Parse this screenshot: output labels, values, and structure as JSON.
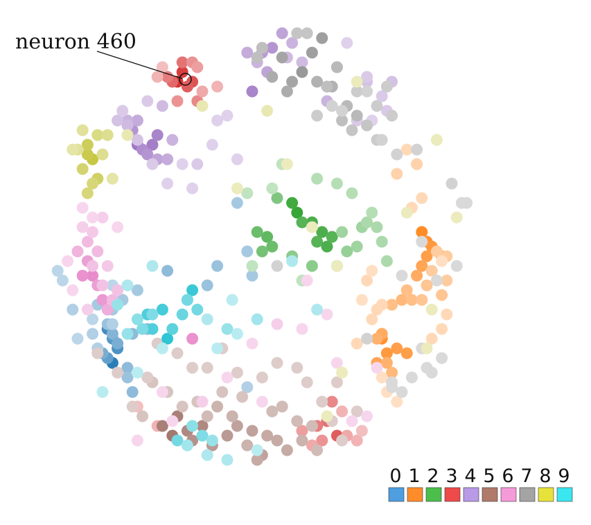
{
  "chart_data": {
    "type": "scatter",
    "title": "",
    "xlabel": "",
    "ylabel": "",
    "xlim": [
      0,
      100
    ],
    "ylim": [
      0,
      100
    ],
    "grid": false,
    "legend_position": "bottom-right",
    "annotation": {
      "label": "neuron 460",
      "point": [
        31.6,
        86.5
      ]
    },
    "legend": [
      {
        "label": "0",
        "color": "#4e9ee0"
      },
      {
        "label": "1",
        "color": "#ff8c2a"
      },
      {
        "label": "2",
        "color": "#4cbe4c"
      },
      {
        "label": "3",
        "color": "#ee4a4a"
      },
      {
        "label": "4",
        "color": "#b89ae6"
      },
      {
        "label": "5",
        "color": "#b07a6a"
      },
      {
        "label": "6",
        "color": "#f59ad8"
      },
      {
        "label": "7",
        "color": "#a4a4a4"
      },
      {
        "label": "8",
        "color": "#e6e23a"
      },
      {
        "label": "9",
        "color": "#3ae6f0"
      }
    ],
    "class_colors": [
      "#1f77b4",
      "#ff7f0e",
      "#2ca02c",
      "#d62728",
      "#9467bd",
      "#8c564b",
      "#e377c2",
      "#7f7f7f",
      "#bcbd22",
      "#17becf"
    ],
    "series": [
      {
        "name": "class 0",
        "x": [
          17,
          16,
          18,
          16,
          17,
          15,
          17,
          18,
          20,
          21,
          16,
          14,
          19,
          22,
          17,
          20,
          24,
          21,
          28,
          36,
          45,
          38,
          44,
          42,
          44,
          13,
          14,
          17,
          19,
          10,
          7,
          6,
          9,
          13,
          17
        ],
        "y": [
          28,
          35,
          31,
          29,
          33,
          30,
          34,
          32,
          27,
          22,
          36,
          40,
          41,
          43,
          39,
          25,
          35,
          34,
          47,
          44,
          46,
          48,
          51,
          61,
          23,
          34,
          31,
          36,
          41,
          33,
          45,
          47,
          39,
          37,
          44
        ],
        "strength": [
          0.95,
          0.85,
          0.8,
          0.7,
          0.75,
          0.6,
          0.55,
          0.6,
          0.5,
          0.5,
          0.45,
          0.4,
          0.5,
          0.4,
          0.4,
          0.45,
          0.5,
          0.5,
          0.5,
          0.45,
          0.4,
          0.45,
          0.4,
          0.4,
          0.35,
          0.35,
          0.35,
          0.35,
          0.4,
          0.3,
          0.3,
          0.3,
          0.35,
          0.3,
          0.3
        ]
      },
      {
        "name": "class 1",
        "x": [
          79,
          80,
          81,
          80,
          79,
          83,
          78,
          71,
          72,
          74,
          76,
          70,
          72,
          73,
          71,
          70,
          75,
          73,
          77,
          76,
          80,
          79,
          83,
          81,
          82,
          84,
          84,
          74,
          78,
          76,
          66,
          68,
          71,
          69,
          70,
          67,
          84,
          83,
          81,
          72,
          74,
          71,
          69,
          83,
          77,
          79
        ],
        "y": [
          55,
          53,
          52,
          50,
          48,
          50,
          46,
          33,
          30,
          31,
          30,
          28,
          28,
          26,
          34,
          33,
          41,
          40,
          41,
          43,
          44,
          41,
          42,
          47,
          51,
          50,
          45,
          67,
          69,
          72,
          32,
          45,
          40,
          37,
          39,
          41,
          38,
          35,
          33,
          22,
          20,
          25,
          47,
          49,
          60,
          62
        ],
        "strength": [
          0.9,
          0.85,
          0.8,
          0.75,
          0.7,
          0.7,
          0.65,
          0.85,
          0.8,
          0.75,
          0.75,
          0.7,
          0.6,
          0.55,
          0.65,
          0.6,
          0.55,
          0.5,
          0.5,
          0.5,
          0.45,
          0.45,
          0.45,
          0.4,
          0.4,
          0.4,
          0.4,
          0.35,
          0.35,
          0.3,
          0.3,
          0.3,
          0.3,
          0.3,
          0.3,
          0.25,
          0.3,
          0.3,
          0.3,
          0.25,
          0.25,
          0.25,
          0.25,
          0.25,
          0.3,
          0.3
        ]
      },
      {
        "name": "class 2",
        "x": [
          54,
          53,
          57,
          55,
          59,
          58,
          60,
          61,
          48,
          46,
          49,
          47,
          50,
          53,
          57,
          62,
          64,
          63,
          67,
          66,
          68,
          70,
          71,
          72,
          69,
          65,
          62,
          58,
          51,
          49,
          44,
          45,
          55
        ],
        "y": [
          59,
          61,
          57,
          57,
          55,
          53,
          52,
          54,
          54,
          55,
          52,
          51,
          62,
          50,
          48,
          48,
          51,
          55,
          56,
          52,
          57,
          56,
          53,
          49,
          59,
          63,
          65,
          66,
          69,
          64,
          63,
          48,
          45
        ],
        "strength": [
          0.95,
          0.9,
          0.85,
          0.8,
          0.85,
          0.8,
          0.85,
          0.8,
          0.75,
          0.7,
          0.7,
          0.65,
          0.6,
          0.55,
          0.55,
          0.5,
          0.5,
          0.45,
          0.45,
          0.45,
          0.4,
          0.4,
          0.4,
          0.4,
          0.35,
          0.35,
          0.35,
          0.35,
          0.3,
          0.3,
          0.3,
          0.3,
          0.3
        ]
      },
      {
        "name": "class 3",
        "x": [
          30,
          31,
          33,
          32,
          29,
          31,
          28,
          34,
          33,
          30,
          35,
          38,
          34,
          26,
          27,
          62,
          60,
          58,
          61,
          59,
          55,
          57,
          64,
          66,
          63,
          67,
          26,
          22
        ],
        "y": [
          86,
          88,
          86,
          85,
          86,
          90,
          87,
          82,
          90,
          82,
          84,
          85,
          89,
          87,
          89,
          13,
          16,
          15,
          20,
          12,
          14,
          11,
          13,
          12,
          18,
          14,
          15,
          19
        ],
        "strength": [
          0.95,
          0.9,
          0.8,
          0.75,
          0.7,
          0.65,
          0.6,
          0.55,
          0.5,
          0.5,
          0.4,
          0.35,
          0.45,
          0.35,
          0.3,
          0.75,
          0.65,
          0.6,
          0.55,
          0.5,
          0.45,
          0.4,
          0.4,
          0.35,
          0.35,
          0.3,
          0.35,
          0.3
        ]
      },
      {
        "name": "class 4",
        "x": [
          22,
          25,
          26,
          23,
          21,
          24,
          26,
          28,
          22,
          20,
          29,
          27,
          45,
          49,
          47,
          51,
          48,
          44,
          46,
          53,
          55,
          52,
          60,
          62,
          68,
          68,
          71,
          72,
          73,
          66,
          69,
          64,
          18,
          20,
          22,
          25,
          34,
          38,
          40,
          31,
          37,
          42,
          19,
          24,
          28,
          33
        ],
        "y": [
          73,
          73,
          75,
          72,
          76,
          71,
          70,
          70,
          78,
          78,
          74,
          81,
          84,
          93,
          92,
          96,
          88,
          92,
          90,
          94,
          90,
          91,
          82,
          89,
          86,
          87,
          83,
          80,
          86,
          78,
          78,
          94,
          78,
          77,
          74,
          69,
          69,
          78,
          79,
          69,
          73,
          70,
          80,
          82,
          65,
          64
        ],
        "strength": [
          0.9,
          0.85,
          0.8,
          0.75,
          0.7,
          0.7,
          0.6,
          0.55,
          0.55,
          0.5,
          0.5,
          0.45,
          0.8,
          0.7,
          0.65,
          0.6,
          0.6,
          0.55,
          0.5,
          0.5,
          0.45,
          0.45,
          0.5,
          0.45,
          0.4,
          0.35,
          0.35,
          0.35,
          0.4,
          0.35,
          0.3,
          0.3,
          0.4,
          0.45,
          0.4,
          0.35,
          0.35,
          0.3,
          0.3,
          0.3,
          0.3,
          0.3,
          0.35,
          0.35,
          0.3,
          0.3
        ]
      },
      {
        "name": "class 5",
        "x": [
          29,
          27,
          30,
          32,
          35,
          33,
          37,
          40,
          42,
          45,
          47,
          48,
          50,
          52,
          46,
          44,
          41,
          38,
          36,
          55,
          58,
          57,
          54,
          51,
          49,
          43,
          39,
          34,
          31,
          28,
          25,
          23,
          21,
          24,
          18,
          14,
          59,
          61,
          56,
          62,
          63,
          66,
          54,
          47,
          50,
          42,
          39,
          36,
          33,
          30,
          26
        ],
        "y": [
          13,
          15,
          17,
          14,
          15,
          12,
          11,
          13,
          15,
          14,
          9,
          13,
          12,
          10,
          8,
          11,
          17,
          19,
          17,
          12,
          10,
          15,
          16,
          19,
          18,
          21,
          22,
          20,
          19,
          22,
          24,
          17,
          19,
          25,
          26,
          30,
          20,
          16,
          24,
          24,
          12,
          18,
          27,
          25,
          28,
          26,
          31,
          27,
          27,
          30,
          32
        ],
        "strength": [
          0.8,
          0.75,
          0.75,
          0.7,
          0.7,
          0.65,
          0.6,
          0.6,
          0.55,
          0.55,
          0.55,
          0.5,
          0.5,
          0.5,
          0.5,
          0.45,
          0.45,
          0.45,
          0.4,
          0.45,
          0.4,
          0.4,
          0.4,
          0.4,
          0.4,
          0.35,
          0.35,
          0.35,
          0.35,
          0.35,
          0.35,
          0.35,
          0.3,
          0.3,
          0.3,
          0.3,
          0.3,
          0.3,
          0.3,
          0.3,
          0.3,
          0.3,
          0.3,
          0.3,
          0.3,
          0.3,
          0.3,
          0.3,
          0.3,
          0.3,
          0.3
        ]
      },
      {
        "name": "class 6",
        "x": [
          13,
          11,
          15,
          14,
          12,
          16,
          10,
          12,
          17,
          18,
          14,
          13,
          15,
          16,
          13,
          11,
          12,
          33,
          15,
          18,
          9,
          8,
          13,
          11,
          50,
          47,
          40,
          45,
          55,
          60,
          65,
          27,
          35,
          22,
          29,
          62,
          68,
          70,
          56
        ],
        "y": [
          46,
          46,
          41,
          44,
          49,
          39,
          51,
          53,
          41,
          43,
          51,
          48,
          44,
          48,
          55,
          56,
          39,
          33,
          58,
          56,
          43,
          49,
          58,
          60,
          36,
          20,
          25,
          32,
          35,
          38,
          16,
          22,
          20,
          12,
          16,
          28,
          17,
          27,
          45
        ],
        "strength": [
          0.85,
          0.8,
          0.75,
          0.7,
          0.7,
          0.6,
          0.55,
          0.5,
          0.5,
          0.45,
          0.5,
          0.45,
          0.45,
          0.4,
          0.4,
          0.35,
          0.35,
          0.8,
          0.35,
          0.3,
          0.3,
          0.3,
          0.3,
          0.3,
          0.35,
          0.3,
          0.3,
          0.3,
          0.3,
          0.3,
          0.3,
          0.3,
          0.35,
          0.3,
          0.3,
          0.3,
          0.3,
          0.3,
          0.3
        ]
      },
      {
        "name": "class 7",
        "x": [
          55,
          57,
          59,
          53,
          51,
          49,
          52,
          58,
          61,
          62,
          64,
          66,
          63,
          60,
          47,
          46,
          54,
          56,
          65,
          68,
          70,
          73,
          72,
          66,
          70,
          58,
          63,
          68,
          71,
          74,
          61,
          78,
          85,
          87,
          86,
          82,
          80,
          75,
          83,
          79,
          77,
          73,
          73,
          75,
          88,
          50,
          79,
          81,
          68
        ],
        "y": [
          88,
          92,
          95,
          86,
          91,
          87,
          84,
          86,
          85,
          89,
          81,
          79,
          78,
          85,
          93,
          91,
          96,
          96,
          76,
          77,
          81,
          79,
          85,
          84,
          74,
          79,
          80,
          84,
          74,
          71,
          81,
          72,
          65,
          61,
          48,
          45,
          27,
          22,
          29,
          31,
          25,
          24,
          23,
          46,
          61,
          48,
          53,
          26,
          33
        ],
        "strength": [
          0.8,
          0.75,
          0.75,
          0.7,
          0.7,
          0.65,
          0.65,
          0.6,
          0.6,
          0.55,
          0.55,
          0.55,
          0.5,
          0.5,
          0.5,
          0.5,
          0.45,
          0.45,
          0.45,
          0.45,
          0.4,
          0.4,
          0.4,
          0.4,
          0.4,
          0.4,
          0.35,
          0.35,
          0.35,
          0.35,
          0.35,
          0.35,
          0.35,
          0.3,
          0.3,
          0.3,
          0.3,
          0.3,
          0.3,
          0.3,
          0.3,
          0.3,
          0.3,
          0.3,
          0.3,
          0.35,
          0.3,
          0.3,
          0.35
        ]
      },
      {
        "name": "class 8",
        "x": [
          13,
          12,
          12,
          14,
          11,
          13,
          12,
          14,
          15,
          16,
          11,
          10,
          9,
          17,
          20,
          35,
          42,
          48,
          52,
          57,
          62,
          66,
          80,
          81,
          82,
          86,
          76,
          60,
          63
        ],
        "y": [
          70,
          71,
          73,
          66,
          68,
          65,
          63,
          75,
          71,
          75,
          76,
          72,
          72,
          66,
          75,
          81,
          64,
          80,
          69,
          56,
          48,
          86,
          31,
          39,
          74,
          58,
          59,
          17,
          26
        ],
        "strength": [
          0.85,
          0.8,
          0.75,
          0.7,
          0.65,
          0.6,
          0.6,
          0.55,
          0.5,
          0.5,
          0.45,
          0.45,
          0.4,
          0.4,
          0.35,
          0.35,
          0.3,
          0.35,
          0.3,
          0.3,
          0.3,
          0.3,
          0.3,
          0.3,
          0.3,
          0.3,
          0.3,
          0.3,
          0.3
        ]
      },
      {
        "name": "class 9",
        "x": [
          28,
          32,
          33,
          27,
          24,
          25,
          29,
          31,
          32,
          34,
          23,
          25,
          22,
          20,
          18,
          30,
          35,
          33,
          37,
          32,
          36,
          40,
          46,
          40,
          46,
          53,
          58,
          25,
          20,
          27,
          15,
          22,
          36,
          38,
          42,
          41
        ],
        "y": [
          33,
          41,
          43,
          39,
          38,
          35,
          35,
          38,
          41,
          39,
          35,
          38,
          37,
          34,
          40,
          12,
          13,
          15,
          12,
          11,
          9,
          8,
          10,
          35,
          37,
          49,
          39,
          48,
          44,
          31,
          22,
          26,
          37,
          31,
          34,
          41
        ],
        "strength": [
          0.9,
          0.9,
          0.85,
          0.8,
          0.75,
          0.75,
          0.7,
          0.65,
          0.6,
          0.6,
          0.55,
          0.55,
          0.5,
          0.45,
          0.45,
          0.6,
          0.55,
          0.5,
          0.45,
          0.4,
          0.35,
          0.35,
          0.3,
          0.45,
          0.4,
          0.35,
          0.35,
          0.35,
          0.35,
          0.3,
          0.3,
          0.3,
          0.35,
          0.3,
          0.3,
          0.3
        ]
      }
    ]
  }
}
